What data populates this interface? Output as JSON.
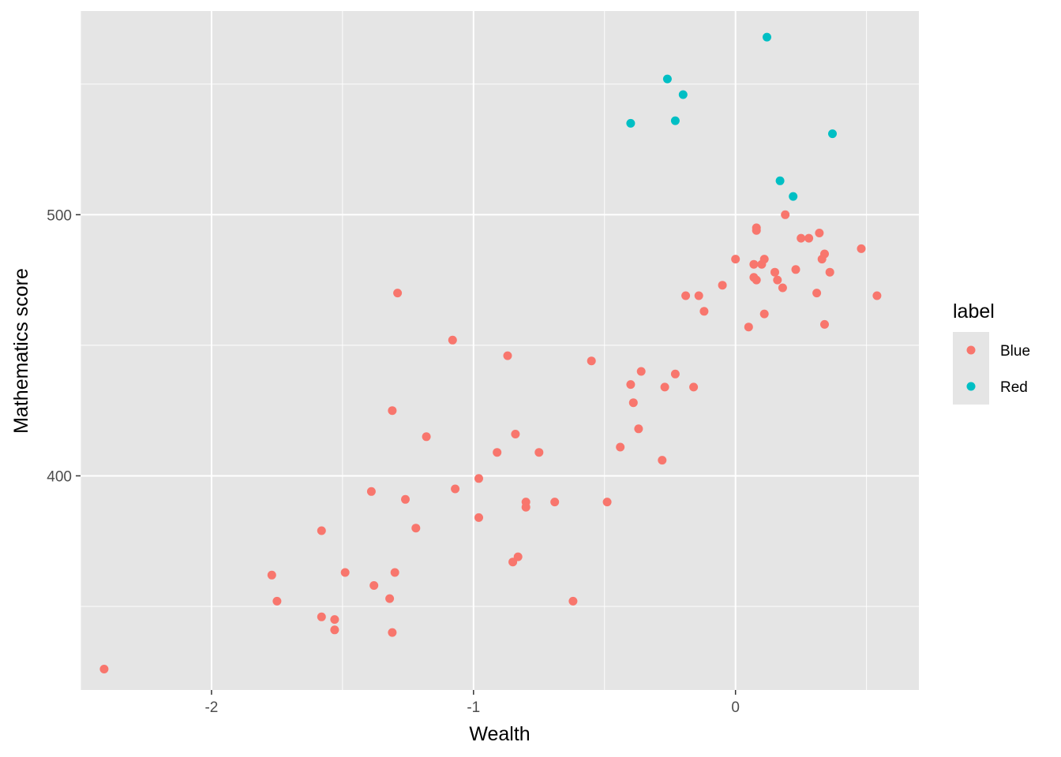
{
  "chart_data": {
    "type": "scatter",
    "xlabel": "Wealth",
    "ylabel": "Mathematics score",
    "xlim": [
      -2.5,
      0.7
    ],
    "ylim": [
      318,
      578
    ],
    "x_ticks": [
      -2,
      -1,
      0
    ],
    "x_tick_labels": [
      "-2",
      "-1",
      "0"
    ],
    "y_ticks": [
      400,
      500
    ],
    "y_tick_labels": [
      "400",
      "500"
    ],
    "grid": true,
    "legend": {
      "title": "label",
      "placement": "right"
    },
    "series": [
      {
        "name": "Blue",
        "color": "#F8766D",
        "points": [
          [
            -2.41,
            326
          ],
          [
            -1.77,
            362
          ],
          [
            -1.75,
            352
          ],
          [
            -1.58,
            346
          ],
          [
            -1.58,
            379
          ],
          [
            -1.53,
            345
          ],
          [
            -1.53,
            341
          ],
          [
            -1.49,
            363
          ],
          [
            -1.39,
            394
          ],
          [
            -1.38,
            358
          ],
          [
            -1.32,
            353
          ],
          [
            -1.31,
            340
          ],
          [
            -1.31,
            425
          ],
          [
            -1.3,
            363
          ],
          [
            -1.29,
            470
          ],
          [
            -1.26,
            391
          ],
          [
            -1.22,
            380
          ],
          [
            -1.18,
            415
          ],
          [
            -1.08,
            452
          ],
          [
            -1.07,
            395
          ],
          [
            -0.98,
            399
          ],
          [
            -0.98,
            384
          ],
          [
            -0.91,
            409
          ],
          [
            -0.87,
            446
          ],
          [
            -0.85,
            367
          ],
          [
            -0.84,
            416
          ],
          [
            -0.83,
            369
          ],
          [
            -0.8,
            390
          ],
          [
            -0.8,
            388
          ],
          [
            -0.75,
            409
          ],
          [
            -0.69,
            390
          ],
          [
            -0.62,
            352
          ],
          [
            -0.55,
            444
          ],
          [
            -0.49,
            390
          ],
          [
            -0.44,
            411
          ],
          [
            -0.4,
            435
          ],
          [
            -0.39,
            428
          ],
          [
            -0.37,
            418
          ],
          [
            -0.36,
            440
          ],
          [
            -0.28,
            406
          ],
          [
            -0.27,
            434
          ],
          [
            -0.23,
            439
          ],
          [
            -0.19,
            469
          ],
          [
            -0.16,
            434
          ],
          [
            -0.14,
            469
          ],
          [
            -0.12,
            463
          ],
          [
            -0.05,
            473
          ],
          [
            0.0,
            483
          ],
          [
            0.05,
            457
          ],
          [
            0.07,
            481
          ],
          [
            0.07,
            476
          ],
          [
            0.08,
            495
          ],
          [
            0.08,
            494
          ],
          [
            0.08,
            475
          ],
          [
            0.1,
            481
          ],
          [
            0.11,
            462
          ],
          [
            0.11,
            483
          ],
          [
            0.15,
            478
          ],
          [
            0.16,
            475
          ],
          [
            0.18,
            472
          ],
          [
            0.19,
            500
          ],
          [
            0.23,
            479
          ],
          [
            0.25,
            491
          ],
          [
            0.28,
            491
          ],
          [
            0.31,
            470
          ],
          [
            0.32,
            493
          ],
          [
            0.33,
            483
          ],
          [
            0.34,
            485
          ],
          [
            0.34,
            458
          ],
          [
            0.36,
            478
          ],
          [
            0.48,
            487
          ],
          [
            0.54,
            469
          ]
        ]
      },
      {
        "name": "Red",
        "color": "#00BFC4",
        "points": [
          [
            -0.4,
            535
          ],
          [
            -0.26,
            552
          ],
          [
            -0.23,
            536
          ],
          [
            -0.2,
            546
          ],
          [
            0.12,
            568
          ],
          [
            0.17,
            513
          ],
          [
            0.22,
            507
          ],
          [
            0.37,
            531
          ]
        ]
      }
    ]
  }
}
